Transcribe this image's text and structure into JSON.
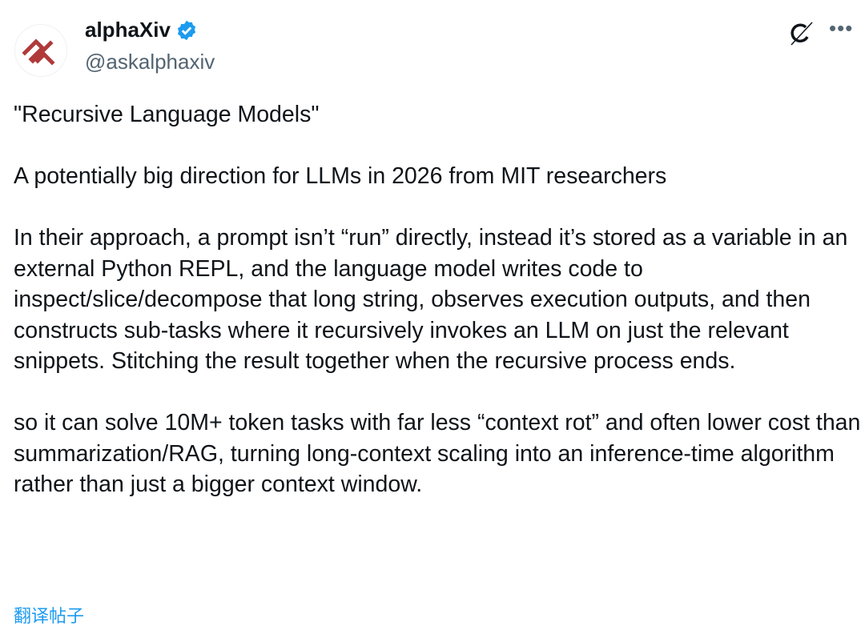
{
  "author": {
    "name": "alphaXiv",
    "handle": "@askalphaxiv",
    "verified": true,
    "verified_color": "#1d9bf0",
    "logo_color": "#b03a3a"
  },
  "icons": {
    "grok": "grok-icon",
    "more": "more-icon",
    "more_glyph": "•••"
  },
  "tweet": {
    "p1": "\"Recursive Language Models\"",
    "p2": "A potentially big direction for LLMs in 2026 from MIT researchers",
    "p3": "In their approach, a prompt isn’t “run” directly, instead it’s stored as a variable in an external Python REPL, and the language model writes code to inspect/slice/decompose that long string, observes execution outputs, and then constructs sub-tasks where it recursively invokes an LLM on just the relevant snippets. Stitching the result together when the recursive process ends.",
    "p4": "so it can solve 10M+ token tasks with far less “context rot” and often lower cost than summarization/RAG, turning long-context scaling into an inference-time algorithm rather than just a bigger context window."
  },
  "translate_label": "翻译帖子"
}
